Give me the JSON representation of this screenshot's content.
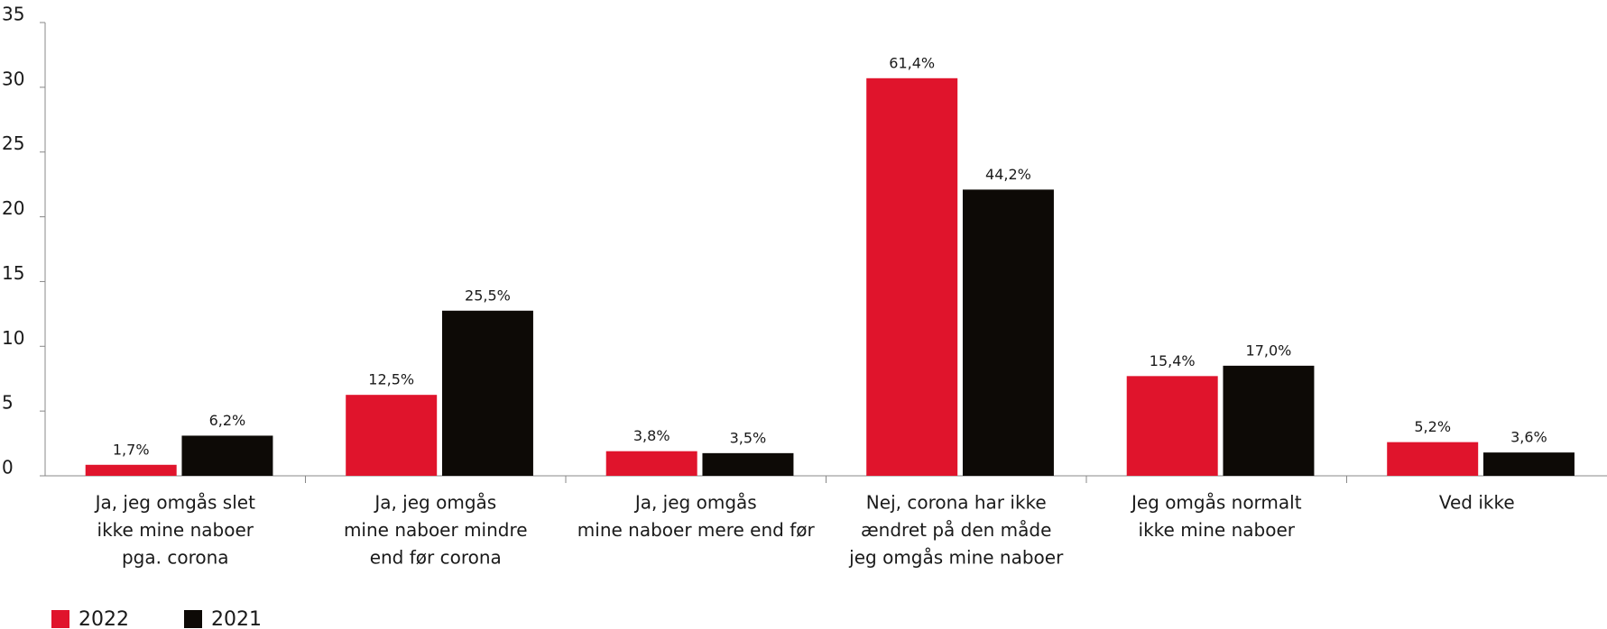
{
  "chart_data": {
    "type": "bar",
    "categories": [
      [
        "Ja, jeg omgås slet",
        "ikke mine naboer",
        "pga. corona"
      ],
      [
        "Ja, jeg omgås",
        "mine naboer mindre",
        "end før corona"
      ],
      [
        "Ja, jeg omgås",
        "mine naboer mere end før"
      ],
      [
        "Nej, corona har ikke",
        "ændret på den måde",
        "jeg omgås mine naboer"
      ],
      [
        "Jeg omgås normalt",
        "ikke mine naboer"
      ],
      [
        "Ved ikke"
      ]
    ],
    "series": [
      {
        "name": "2022",
        "color": "#e0142c",
        "values": [
          0.85,
          6.25,
          1.9,
          30.7,
          7.7,
          2.6
        ],
        "value_labels": [
          "1,7%",
          "12,5%",
          "3,8%",
          "61,4%",
          "15,4%",
          "5,2%"
        ]
      },
      {
        "name": "2021",
        "color": "#0d0a06",
        "values": [
          3.1,
          12.75,
          1.75,
          22.1,
          8.5,
          1.8
        ],
        "value_labels": [
          "6,2%",
          "25,5%",
          "3,5%",
          "44,2%",
          "17,0%",
          "3,6%"
        ]
      }
    ],
    "ylim": [
      0,
      35
    ],
    "yticks": [
      0,
      5,
      10,
      15,
      20,
      25,
      30,
      35
    ],
    "legend": "bottom-left"
  }
}
